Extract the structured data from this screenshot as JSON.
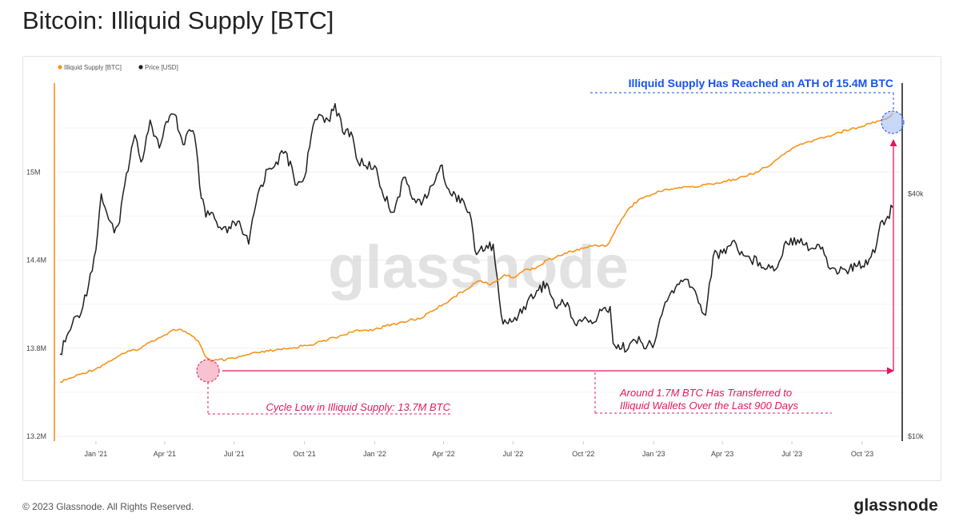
{
  "header": {
    "title": "Bitcoin: Illiquid Supply [BTC]"
  },
  "footer": {
    "copyright": "© 2023 Glassnode. All Rights Reserved.",
    "logo": "glassnode"
  },
  "watermark": "glassnode",
  "chart_data": {
    "type": "line",
    "title": "Bitcoin: Illiquid Supply [BTC]",
    "x_ticks": [
      "Jan '21",
      "Apr '21",
      "Jul '21",
      "Oct '21",
      "Jan '22",
      "Apr '22",
      "Jul '22",
      "Oct '22",
      "Jan '23",
      "Apr '23",
      "Jul '23",
      "Oct '23"
    ],
    "left_axis": {
      "ticks": [
        "15M",
        "14.4M",
        "13.8M",
        "13.2M"
      ],
      "tick_values": [
        15.0,
        14.4,
        13.8,
        13.2
      ],
      "range": [
        13.2,
        15.6
      ]
    },
    "right_axis": {
      "ticks": [
        "$40k",
        "$10k"
      ],
      "tick_values": [
        40000,
        10000
      ],
      "scale": "log",
      "range": [
        10000,
        75000
      ]
    },
    "legend": {
      "placement": "top-left",
      "items": [
        {
          "label": "Illiquid Supply [BTC]",
          "color": "#f7931a"
        },
        {
          "label": "Price [USD]",
          "color": "#1f1f1f"
        }
      ]
    },
    "series": [
      {
        "name": "Illiquid Supply [BTC]",
        "axis": "left",
        "color": "#f7931a",
        "x": [
          "2020-11-15",
          "2020-12-01",
          "2020-12-15",
          "2021-01-01",
          "2021-01-15",
          "2021-02-01",
          "2021-02-15",
          "2021-03-01",
          "2021-03-15",
          "2021-04-01",
          "2021-04-10",
          "2021-04-20",
          "2021-05-01",
          "2021-05-15",
          "2021-05-25",
          "2021-06-01",
          "2021-06-10",
          "2021-06-20",
          "2021-07-01",
          "2021-07-15",
          "2021-08-01",
          "2021-08-15",
          "2021-09-01",
          "2021-09-15",
          "2021-10-01",
          "2021-10-15",
          "2021-11-01",
          "2021-11-15",
          "2021-12-01",
          "2021-12-15",
          "2022-01-01",
          "2022-01-15",
          "2022-02-01",
          "2022-02-15",
          "2022-03-01",
          "2022-03-15",
          "2022-04-01",
          "2022-04-15",
          "2022-05-01",
          "2022-05-10",
          "2022-05-20",
          "2022-06-01",
          "2022-06-10",
          "2022-06-20",
          "2022-07-01",
          "2022-07-15",
          "2022-08-01",
          "2022-08-15",
          "2022-09-01",
          "2022-09-15",
          "2022-10-01",
          "2022-10-15",
          "2022-11-01",
          "2022-11-10",
          "2022-11-20",
          "2022-12-01",
          "2022-12-15",
          "2023-01-01",
          "2023-01-15",
          "2023-02-01",
          "2023-02-15",
          "2023-03-01",
          "2023-03-15",
          "2023-04-01",
          "2023-04-15",
          "2023-05-01",
          "2023-05-15",
          "2023-06-01",
          "2023-06-15",
          "2023-07-01",
          "2023-07-15",
          "2023-08-01",
          "2023-08-15",
          "2023-09-01",
          "2023-09-15",
          "2023-10-01",
          "2023-10-15",
          "2023-11-01",
          "2023-11-10"
        ],
        "values": [
          13.57,
          13.6,
          13.63,
          13.66,
          13.7,
          13.75,
          13.78,
          13.8,
          13.85,
          13.89,
          13.92,
          13.93,
          13.9,
          13.85,
          13.74,
          13.71,
          13.72,
          13.72,
          13.73,
          13.75,
          13.77,
          13.78,
          13.79,
          13.8,
          13.82,
          13.83,
          13.86,
          13.88,
          13.91,
          13.92,
          13.93,
          13.95,
          13.97,
          13.99,
          14.0,
          14.05,
          14.1,
          14.15,
          14.2,
          14.24,
          14.26,
          14.23,
          14.26,
          14.3,
          14.28,
          14.33,
          14.35,
          14.4,
          14.43,
          14.46,
          14.48,
          14.5,
          14.5,
          14.58,
          14.68,
          14.76,
          14.82,
          14.85,
          14.88,
          14.89,
          14.9,
          14.9,
          14.92,
          14.93,
          14.95,
          14.97,
          15.0,
          15.04,
          15.1,
          15.16,
          15.19,
          15.22,
          15.24,
          15.27,
          15.29,
          15.31,
          15.34,
          15.36,
          15.4
        ]
      },
      {
        "name": "Price [USD]",
        "axis": "right",
        "color": "#1f1f1f",
        "x": [
          "2020-11-15",
          "2020-12-01",
          "2020-12-15",
          "2021-01-01",
          "2021-01-08",
          "2021-01-15",
          "2021-01-25",
          "2021-02-01",
          "2021-02-10",
          "2021-02-21",
          "2021-03-01",
          "2021-03-13",
          "2021-03-25",
          "2021-04-01",
          "2021-04-14",
          "2021-04-25",
          "2021-05-01",
          "2021-05-10",
          "2021-05-19",
          "2021-05-25",
          "2021-06-01",
          "2021-06-10",
          "2021-06-22",
          "2021-07-01",
          "2021-07-10",
          "2021-07-20",
          "2021-08-01",
          "2021-08-14",
          "2021-08-25",
          "2021-09-06",
          "2021-09-21",
          "2021-10-01",
          "2021-10-10",
          "2021-10-20",
          "2021-11-01",
          "2021-11-10",
          "2021-11-20",
          "2021-12-01",
          "2021-12-10",
          "2021-12-20",
          "2022-01-01",
          "2022-01-10",
          "2022-01-24",
          "2022-02-10",
          "2022-02-24",
          "2022-03-10",
          "2022-03-28",
          "2022-04-10",
          "2022-04-25",
          "2022-05-05",
          "2022-05-12",
          "2022-05-25",
          "2022-06-05",
          "2022-06-13",
          "2022-06-18",
          "2022-07-01",
          "2022-07-15",
          "2022-08-01",
          "2022-08-14",
          "2022-08-25",
          "2022-09-10",
          "2022-09-20",
          "2022-10-01",
          "2022-10-15",
          "2022-10-25",
          "2022-11-05",
          "2022-11-09",
          "2022-11-20",
          "2022-12-01",
          "2022-12-15",
          "2022-12-31",
          "2023-01-14",
          "2023-01-25",
          "2023-02-15",
          "2023-03-10",
          "2023-03-20",
          "2023-04-01",
          "2023-04-14",
          "2023-05-01",
          "2023-05-20",
          "2023-06-10",
          "2023-06-23",
          "2023-07-13",
          "2023-07-25",
          "2023-08-10",
          "2023-08-20",
          "2023-09-10",
          "2023-09-25",
          "2023-10-10",
          "2023-10-20",
          "2023-10-25",
          "2023-11-01",
          "2023-11-10"
        ],
        "values": [
          16000,
          19000,
          21000,
          29000,
          40000,
          36000,
          32000,
          34000,
          45000,
          56000,
          48000,
          61000,
          52000,
          59000,
          63000,
          53000,
          57000,
          56000,
          39000,
          35000,
          36000,
          33000,
          32000,
          34000,
          33000,
          30000,
          40000,
          46000,
          48000,
          51000,
          42000,
          44000,
          56000,
          63000,
          61000,
          67000,
          57000,
          57000,
          48000,
          47000,
          47000,
          41000,
          36000,
          44000,
          38000,
          39000,
          47000,
          40000,
          39000,
          36000,
          29000,
          29000,
          30000,
          22000,
          19000,
          19300,
          21000,
          23000,
          24000,
          21000,
          21500,
          19000,
          19500,
          19200,
          20500,
          21000,
          17000,
          16500,
          17000,
          17200,
          16600,
          20800,
          23000,
          24500,
          20000,
          28000,
          28500,
          30500,
          28000,
          27000,
          26000,
          30500,
          31000,
          29200,
          29500,
          26000,
          25800,
          26500,
          27500,
          30000,
          34000,
          34500,
          37000
        ]
      }
    ],
    "annotations": [
      {
        "label": "Illiquid Supply Has Reached an ATH of 15.4M BTC",
        "color": "#1552f0"
      },
      {
        "label": "Cycle Low in Illiquid Supply: 13.7M BTC",
        "color": "#e5175c"
      },
      {
        "lines": [
          "Around 1.7M BTC Has Transferred to",
          "Illiquid Wallets Over the Last 900 Days"
        ],
        "color": "#e5175c"
      }
    ]
  }
}
